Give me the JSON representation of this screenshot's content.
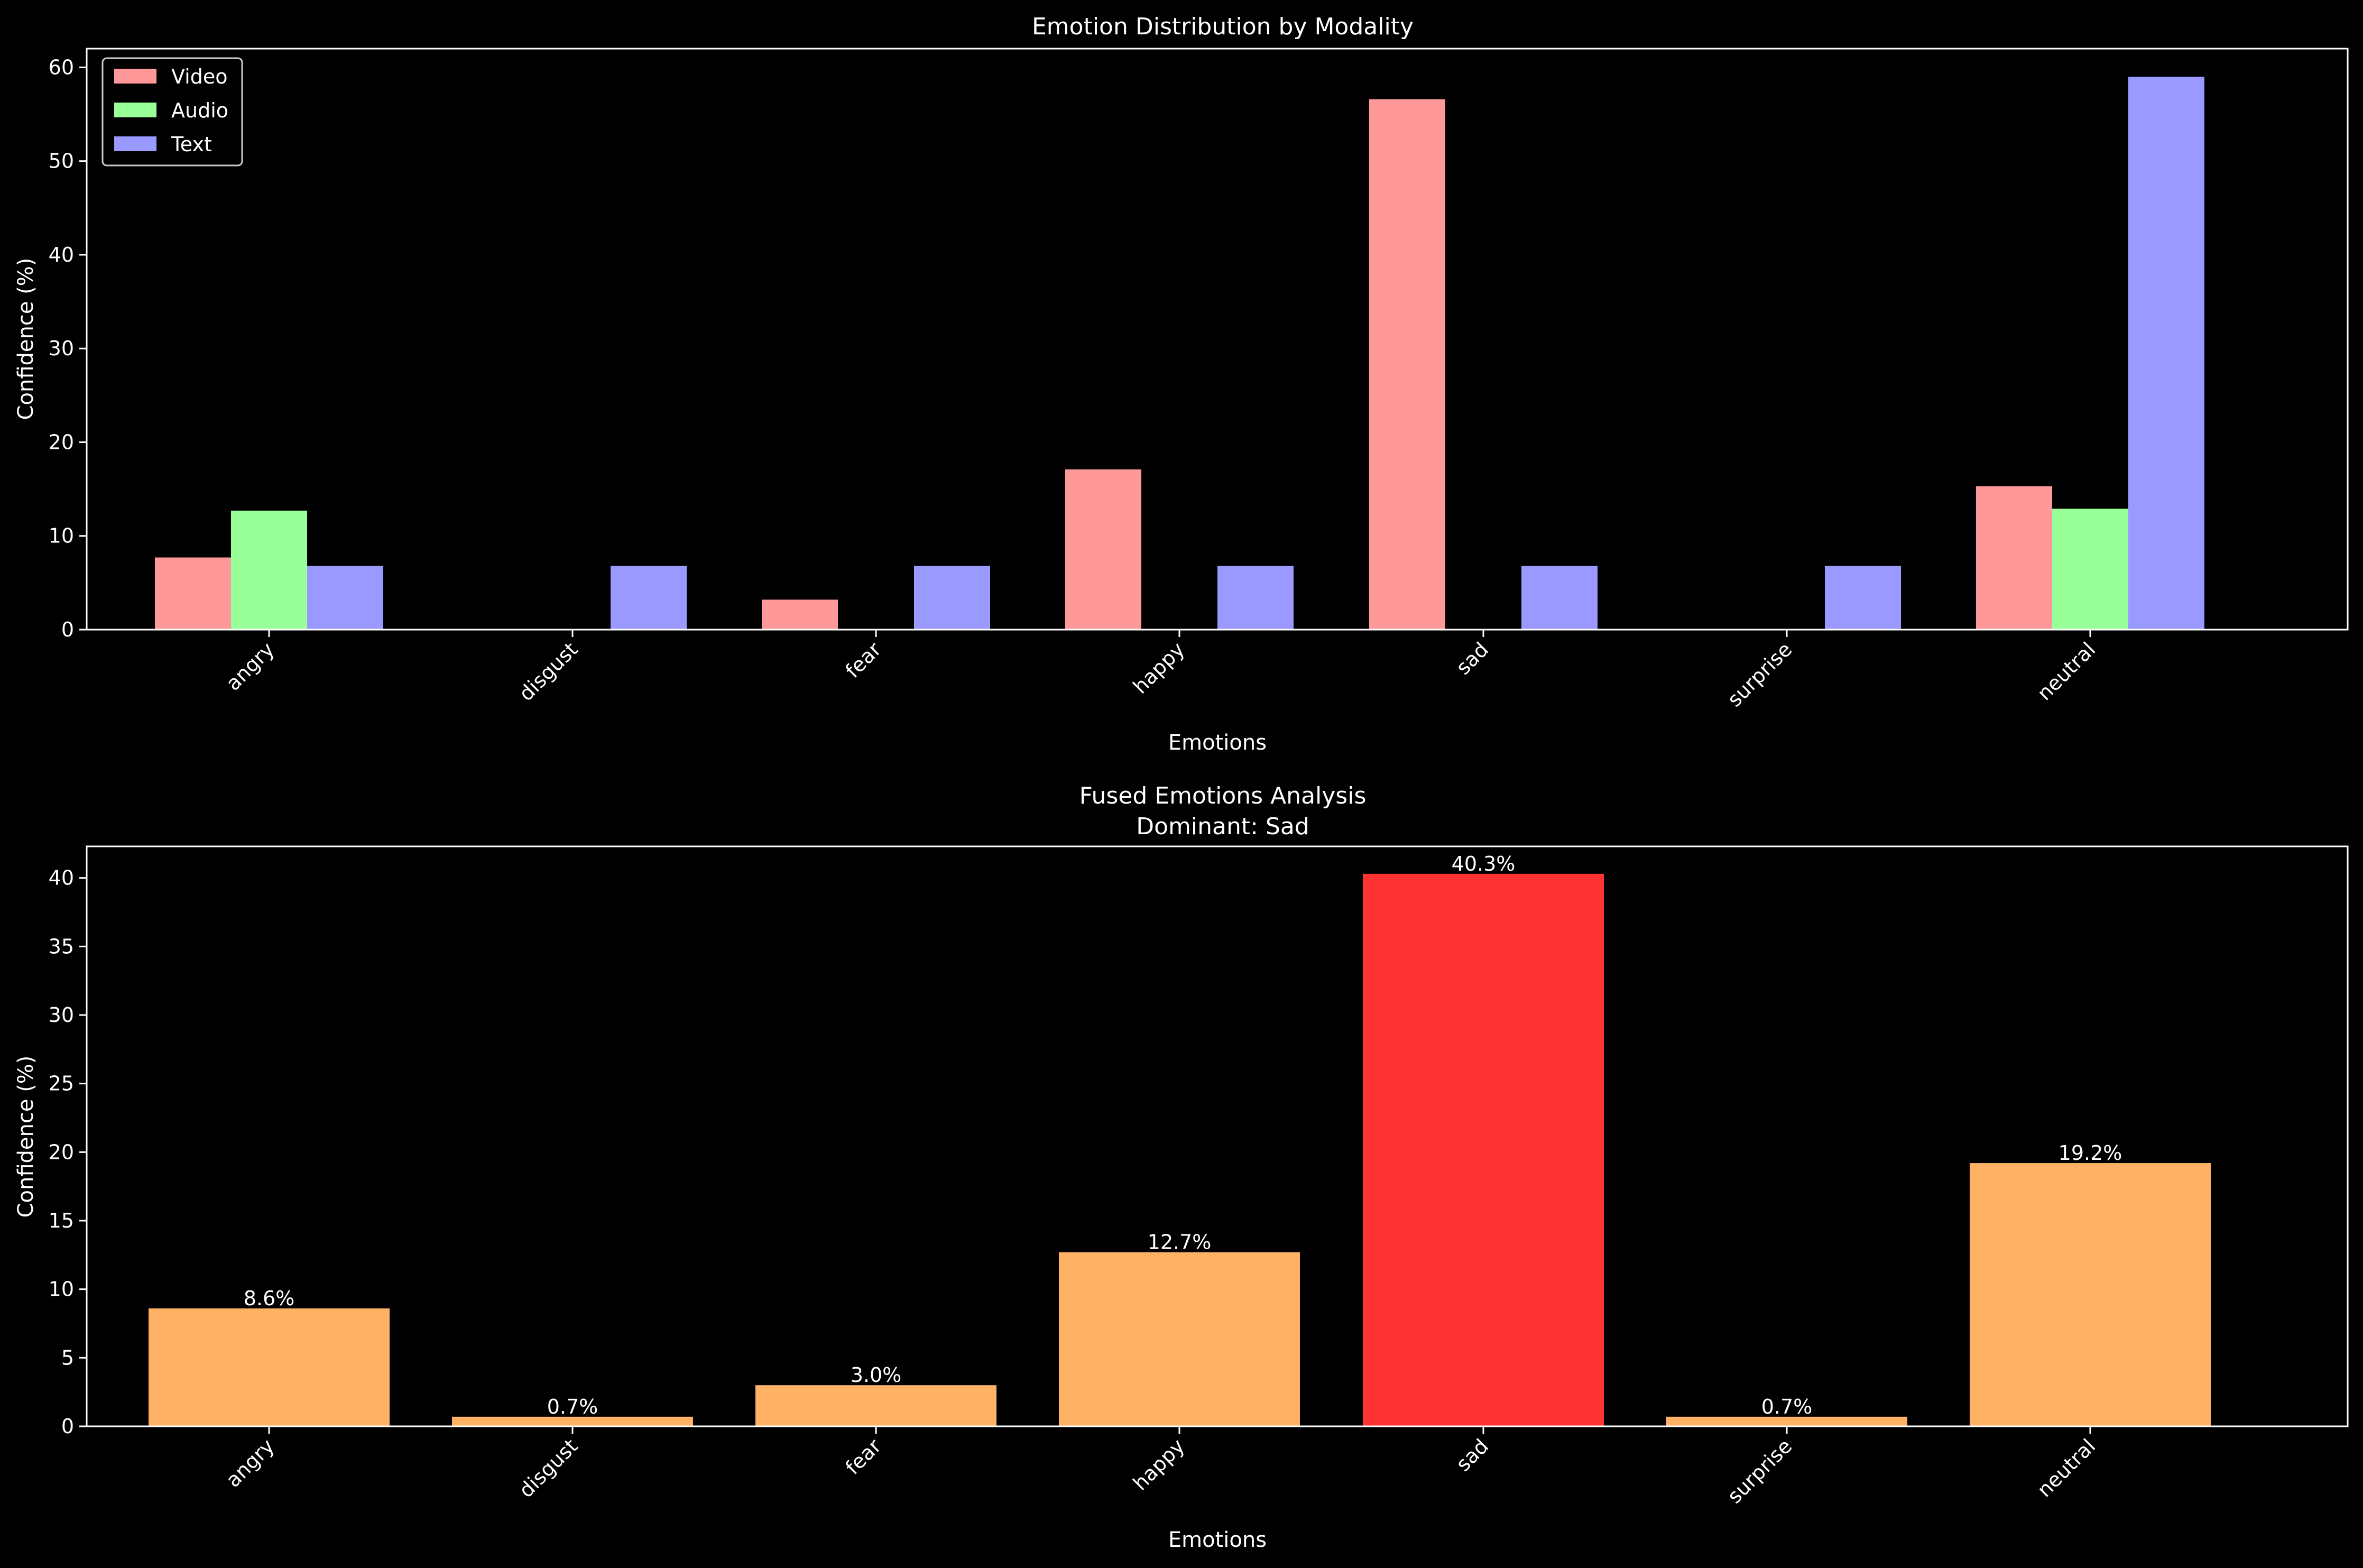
{
  "chart_data": [
    {
      "type": "bar",
      "title": "Emotion Distribution by Modality",
      "xlabel": "Emotions",
      "ylabel": "Confidence (%)",
      "ylim": [
        0,
        62
      ],
      "yticks": [
        0,
        10,
        20,
        30,
        40,
        50,
        60
      ],
      "categories": [
        "angry",
        "disgust",
        "fear",
        "happy",
        "sad",
        "surprise",
        "neutral"
      ],
      "legend": "top-left",
      "grid": false,
      "series": [
        {
          "name": "Video",
          "color": "#ff9999",
          "values": [
            7.7,
            0,
            3.2,
            17.1,
            56.6,
            0,
            15.3
          ]
        },
        {
          "name": "Audio",
          "color": "#99ff99",
          "values": [
            12.7,
            0,
            0,
            0,
            0,
            0,
            12.9
          ]
        },
        {
          "name": "Text",
          "color": "#9999ff",
          "values": [
            6.8,
            6.8,
            6.8,
            6.8,
            6.8,
            6.8,
            59.0
          ]
        }
      ]
    },
    {
      "type": "bar",
      "title": "Fused Emotions Analysis",
      "subtitle": "Dominant: Sad",
      "xlabel": "Emotions",
      "ylabel": "Confidence (%)",
      "ylim": [
        0,
        42.3
      ],
      "yticks": [
        0,
        5,
        10,
        15,
        20,
        25,
        30,
        35,
        40
      ],
      "categories": [
        "angry",
        "disgust",
        "fear",
        "happy",
        "sad",
        "surprise",
        "neutral"
      ],
      "values": [
        8.6,
        0.7,
        3.0,
        12.7,
        40.3,
        0.7,
        19.2
      ],
      "data_labels": [
        "8.6%",
        "0.7%",
        "3.0%",
        "12.7%",
        "40.3%",
        "0.7%",
        "19.2%"
      ],
      "colors": [
        "#ffb266",
        "#ffb266",
        "#ffb266",
        "#ffb266",
        "#ff3333",
        "#ffb266",
        "#ffb266"
      ],
      "grid": false
    }
  ]
}
